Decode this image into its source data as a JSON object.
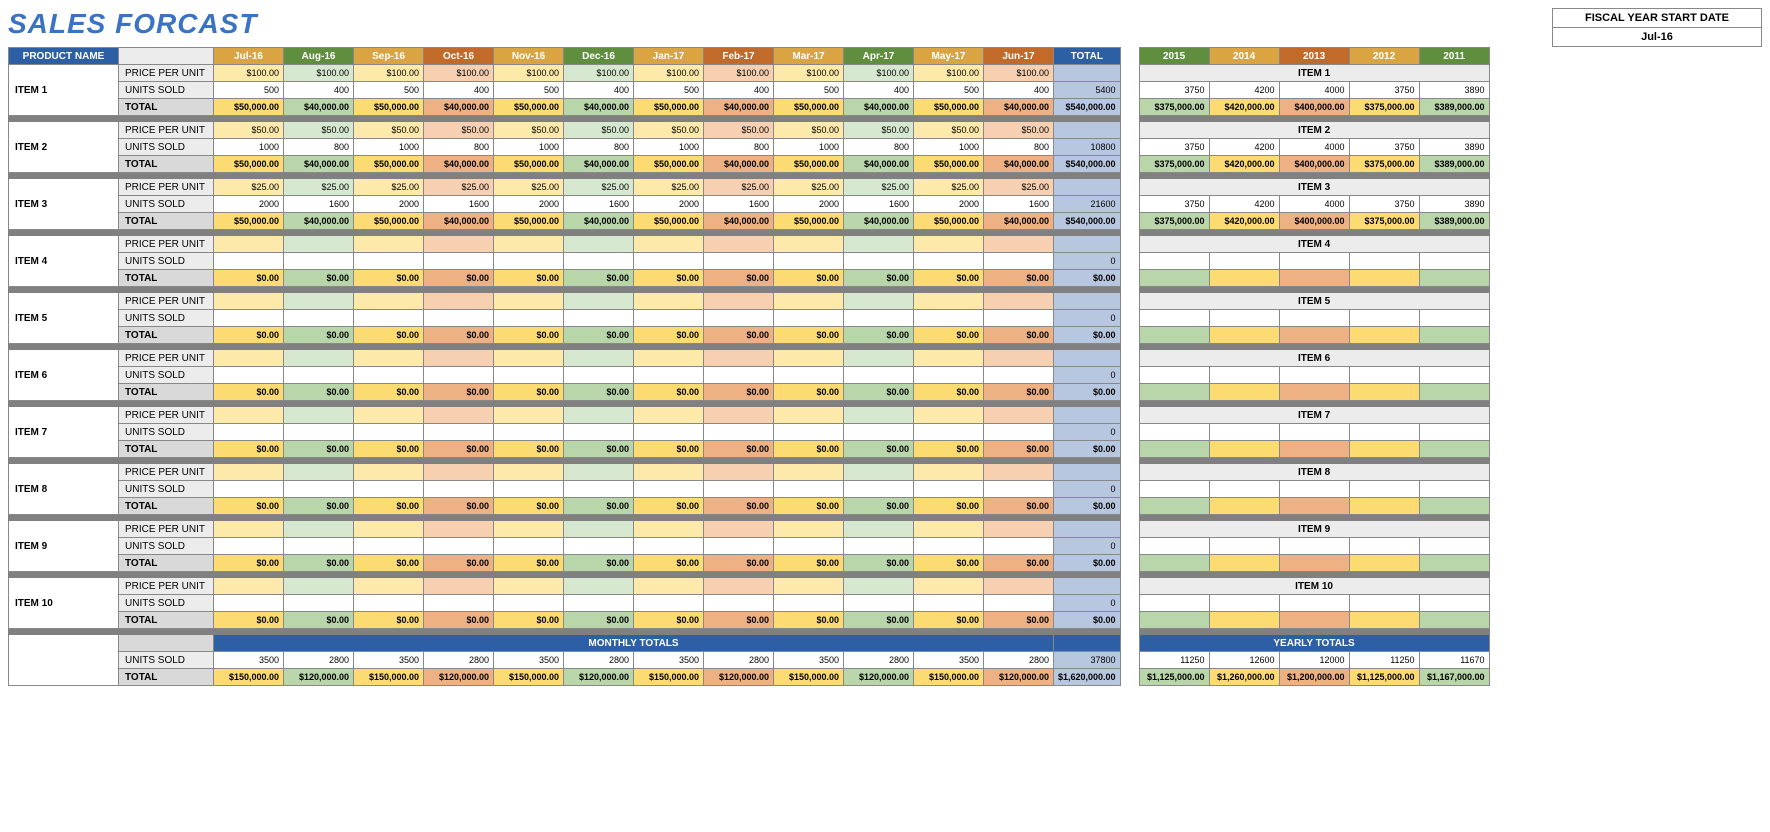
{
  "title": "SALES FORCAST",
  "fiscal": {
    "label": "FISCAL YEAR START DATE",
    "value": "Jul-16"
  },
  "headers": {
    "product": "PRODUCT NAME",
    "months": [
      "Jul-16",
      "Aug-16",
      "Sep-16",
      "Oct-16",
      "Nov-16",
      "Dec-16",
      "Jan-17",
      "Feb-17",
      "Mar-17",
      "Apr-17",
      "May-17",
      "Jun-17"
    ],
    "total": "TOTAL",
    "years": [
      "2015",
      "2014",
      "2013",
      "2012",
      "2011"
    ]
  },
  "rowLabels": {
    "price": "PRICE PER UNIT",
    "units": "UNITS SOLD",
    "total": "TOTAL"
  },
  "monthlyTotalsLabel": "MONTHLY TOTALS",
  "yearlyTotalsLabel": "YEARLY TOTALS",
  "colors": {
    "title": "#3b73c4",
    "navy": "#2d5fa4",
    "monthHeaders": [
      "#d9a441",
      "#5f8f3e",
      "#d9a441",
      "#c26a2a",
      "#d9a441",
      "#5f8f3e",
      "#d9a441",
      "#c26a2a",
      "#d9a441",
      "#5f8f3e",
      "#d9a441",
      "#c26a2a"
    ],
    "monthLight": [
      "#fde9a9",
      "#d6e8cf",
      "#fde9a9",
      "#f6d0b0",
      "#fde9a9",
      "#d6e8cf",
      "#fde9a9",
      "#f6d0b0",
      "#fde9a9",
      "#d6e8cf",
      "#fde9a9",
      "#f6d0b0"
    ],
    "monthMed": [
      "#fcdc72",
      "#b8d6a9",
      "#fcdc72",
      "#eeb184",
      "#fcdc72",
      "#b8d6a9",
      "#fcdc72",
      "#eeb184",
      "#fcdc72",
      "#b8d6a9",
      "#fcdc72",
      "#eeb184"
    ],
    "totalCol": "#b8c7e0",
    "spacer": "#808080",
    "rowLabelBg": "#ececec",
    "rowLabelTotBg": "#d9d9d9"
  },
  "items": [
    {
      "name": "ITEM 1",
      "price": [
        "$100.00",
        "$100.00",
        "$100.00",
        "$100.00",
        "$100.00",
        "$100.00",
        "$100.00",
        "$100.00",
        "$100.00",
        "$100.00",
        "$100.00",
        "$100.00"
      ],
      "units": [
        "500",
        "400",
        "500",
        "400",
        "500",
        "400",
        "500",
        "400",
        "500",
        "400",
        "500",
        "400"
      ],
      "total": [
        "$50,000.00",
        "$40,000.00",
        "$50,000.00",
        "$40,000.00",
        "$50,000.00",
        "$40,000.00",
        "$50,000.00",
        "$40,000.00",
        "$50,000.00",
        "$40,000.00",
        "$50,000.00",
        "$40,000.00"
      ],
      "unitsTotal": "5400",
      "grandTotal": "$540,000.00",
      "yearUnits": [
        "3750",
        "4200",
        "4000",
        "3750",
        "3890"
      ],
      "yearTotals": [
        "$375,000.00",
        "$420,000.00",
        "$400,000.00",
        "$375,000.00",
        "$389,000.00"
      ]
    },
    {
      "name": "ITEM 2",
      "price": [
        "$50.00",
        "$50.00",
        "$50.00",
        "$50.00",
        "$50.00",
        "$50.00",
        "$50.00",
        "$50.00",
        "$50.00",
        "$50.00",
        "$50.00",
        "$50.00"
      ],
      "units": [
        "1000",
        "800",
        "1000",
        "800",
        "1000",
        "800",
        "1000",
        "800",
        "1000",
        "800",
        "1000",
        "800"
      ],
      "total": [
        "$50,000.00",
        "$40,000.00",
        "$50,000.00",
        "$40,000.00",
        "$50,000.00",
        "$40,000.00",
        "$50,000.00",
        "$40,000.00",
        "$50,000.00",
        "$40,000.00",
        "$50,000.00",
        "$40,000.00"
      ],
      "unitsTotal": "10800",
      "grandTotal": "$540,000.00",
      "yearUnits": [
        "3750",
        "4200",
        "4000",
        "3750",
        "3890"
      ],
      "yearTotals": [
        "$375,000.00",
        "$420,000.00",
        "$400,000.00",
        "$375,000.00",
        "$389,000.00"
      ]
    },
    {
      "name": "ITEM 3",
      "price": [
        "$25.00",
        "$25.00",
        "$25.00",
        "$25.00",
        "$25.00",
        "$25.00",
        "$25.00",
        "$25.00",
        "$25.00",
        "$25.00",
        "$25.00",
        "$25.00"
      ],
      "units": [
        "2000",
        "1600",
        "2000",
        "1600",
        "2000",
        "1600",
        "2000",
        "1600",
        "2000",
        "1600",
        "2000",
        "1600"
      ],
      "total": [
        "$50,000.00",
        "$40,000.00",
        "$50,000.00",
        "$40,000.00",
        "$50,000.00",
        "$40,000.00",
        "$50,000.00",
        "$40,000.00",
        "$50,000.00",
        "$40,000.00",
        "$50,000.00",
        "$40,000.00"
      ],
      "unitsTotal": "21600",
      "grandTotal": "$540,000.00",
      "yearUnits": [
        "3750",
        "4200",
        "4000",
        "3750",
        "3890"
      ],
      "yearTotals": [
        "$375,000.00",
        "$420,000.00",
        "$400,000.00",
        "$375,000.00",
        "$389,000.00"
      ]
    },
    {
      "name": "ITEM 4",
      "price": [
        "",
        "",
        "",
        "",
        "",
        "",
        "",
        "",
        "",
        "",
        "",
        ""
      ],
      "units": [
        "",
        "",
        "",
        "",
        "",
        "",
        "",
        "",
        "",
        "",
        "",
        ""
      ],
      "total": [
        "$0.00",
        "$0.00",
        "$0.00",
        "$0.00",
        "$0.00",
        "$0.00",
        "$0.00",
        "$0.00",
        "$0.00",
        "$0.00",
        "$0.00",
        "$0.00"
      ],
      "unitsTotal": "0",
      "grandTotal": "$0.00",
      "yearUnits": [
        "",
        "",
        "",
        "",
        ""
      ],
      "yearTotals": [
        "",
        "",
        "",
        "",
        ""
      ]
    },
    {
      "name": "ITEM 5",
      "price": [
        "",
        "",
        "",
        "",
        "",
        "",
        "",
        "",
        "",
        "",
        "",
        ""
      ],
      "units": [
        "",
        "",
        "",
        "",
        "",
        "",
        "",
        "",
        "",
        "",
        "",
        ""
      ],
      "total": [
        "$0.00",
        "$0.00",
        "$0.00",
        "$0.00",
        "$0.00",
        "$0.00",
        "$0.00",
        "$0.00",
        "$0.00",
        "$0.00",
        "$0.00",
        "$0.00"
      ],
      "unitsTotal": "0",
      "grandTotal": "$0.00",
      "yearUnits": [
        "",
        "",
        "",
        "",
        ""
      ],
      "yearTotals": [
        "",
        "",
        "",
        "",
        ""
      ]
    },
    {
      "name": "ITEM 6",
      "price": [
        "",
        "",
        "",
        "",
        "",
        "",
        "",
        "",
        "",
        "",
        "",
        ""
      ],
      "units": [
        "",
        "",
        "",
        "",
        "",
        "",
        "",
        "",
        "",
        "",
        "",
        ""
      ],
      "total": [
        "$0.00",
        "$0.00",
        "$0.00",
        "$0.00",
        "$0.00",
        "$0.00",
        "$0.00",
        "$0.00",
        "$0.00",
        "$0.00",
        "$0.00",
        "$0.00"
      ],
      "unitsTotal": "0",
      "grandTotal": "$0.00",
      "yearUnits": [
        "",
        "",
        "",
        "",
        ""
      ],
      "yearTotals": [
        "",
        "",
        "",
        "",
        ""
      ]
    },
    {
      "name": "ITEM 7",
      "price": [
        "",
        "",
        "",
        "",
        "",
        "",
        "",
        "",
        "",
        "",
        "",
        ""
      ],
      "units": [
        "",
        "",
        "",
        "",
        "",
        "",
        "",
        "",
        "",
        "",
        "",
        ""
      ],
      "total": [
        "$0.00",
        "$0.00",
        "$0.00",
        "$0.00",
        "$0.00",
        "$0.00",
        "$0.00",
        "$0.00",
        "$0.00",
        "$0.00",
        "$0.00",
        "$0.00"
      ],
      "unitsTotal": "0",
      "grandTotal": "$0.00",
      "yearUnits": [
        "",
        "",
        "",
        "",
        ""
      ],
      "yearTotals": [
        "",
        "",
        "",
        "",
        ""
      ]
    },
    {
      "name": "ITEM 8",
      "price": [
        "",
        "",
        "",
        "",
        "",
        "",
        "",
        "",
        "",
        "",
        "",
        ""
      ],
      "units": [
        "",
        "",
        "",
        "",
        "",
        "",
        "",
        "",
        "",
        "",
        "",
        ""
      ],
      "total": [
        "$0.00",
        "$0.00",
        "$0.00",
        "$0.00",
        "$0.00",
        "$0.00",
        "$0.00",
        "$0.00",
        "$0.00",
        "$0.00",
        "$0.00",
        "$0.00"
      ],
      "unitsTotal": "0",
      "grandTotal": "$0.00",
      "yearUnits": [
        "",
        "",
        "",
        "",
        ""
      ],
      "yearTotals": [
        "",
        "",
        "",
        "",
        ""
      ]
    },
    {
      "name": "ITEM 9",
      "price": [
        "",
        "",
        "",
        "",
        "",
        "",
        "",
        "",
        "",
        "",
        "",
        ""
      ],
      "units": [
        "",
        "",
        "",
        "",
        "",
        "",
        "",
        "",
        "",
        "",
        "",
        ""
      ],
      "total": [
        "$0.00",
        "$0.00",
        "$0.00",
        "$0.00",
        "$0.00",
        "$0.00",
        "$0.00",
        "$0.00",
        "$0.00",
        "$0.00",
        "$0.00",
        "$0.00"
      ],
      "unitsTotal": "0",
      "grandTotal": "$0.00",
      "yearUnits": [
        "",
        "",
        "",
        "",
        ""
      ],
      "yearTotals": [
        "",
        "",
        "",
        "",
        ""
      ]
    },
    {
      "name": "ITEM 10",
      "price": [
        "",
        "",
        "",
        "",
        "",
        "",
        "",
        "",
        "",
        "",
        "",
        ""
      ],
      "units": [
        "",
        "",
        "",
        "",
        "",
        "",
        "",
        "",
        "",
        "",
        "",
        ""
      ],
      "total": [
        "$0.00",
        "$0.00",
        "$0.00",
        "$0.00",
        "$0.00",
        "$0.00",
        "$0.00",
        "$0.00",
        "$0.00",
        "$0.00",
        "$0.00",
        "$0.00"
      ],
      "unitsTotal": "0",
      "grandTotal": "$0.00",
      "yearUnits": [
        "",
        "",
        "",
        "",
        ""
      ],
      "yearTotals": [
        "",
        "",
        "",
        "",
        ""
      ]
    }
  ],
  "monthlyTotals": {
    "units": [
      "3500",
      "2800",
      "3500",
      "2800",
      "3500",
      "2800",
      "3500",
      "2800",
      "3500",
      "2800",
      "3500",
      "2800"
    ],
    "unitsTotal": "37800",
    "total": [
      "$150,000.00",
      "$120,000.00",
      "$150,000.00",
      "$120,000.00",
      "$150,000.00",
      "$120,000.00",
      "$150,000.00",
      "$120,000.00",
      "$150,000.00",
      "$120,000.00",
      "$150,000.00",
      "$120,000.00"
    ],
    "grandTotal": "$1,620,000.00"
  },
  "yearlyTotals": {
    "units": [
      "11250",
      "12600",
      "12000",
      "11250",
      "11670"
    ],
    "total": [
      "$1,125,000.00",
      "$1,260,000.00",
      "$1,200,000.00",
      "$1,125,000.00",
      "$1,167,000.00"
    ]
  }
}
